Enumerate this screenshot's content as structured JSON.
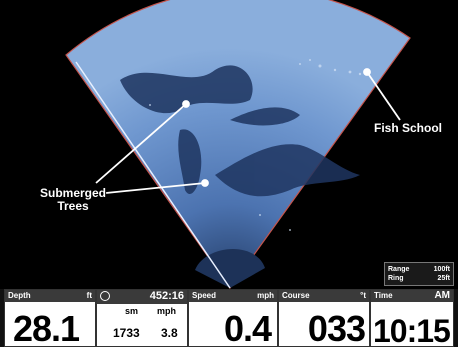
{
  "colors": {
    "sonar_light": "#a9c4e8",
    "sonar_mid": "#5d86c3",
    "sonar_dark": "#233c66",
    "edge_red": "#c4544c"
  },
  "annotations": {
    "fish_school": "Fish School",
    "submerged_line1": "Submerged",
    "submerged_line2": "Trees"
  },
  "range_box": {
    "range_label": "Range",
    "range_value": "100ft",
    "ring_label": "Ring",
    "ring_value": "25ft"
  },
  "panel": {
    "depth": {
      "label": "Depth",
      "unit": "ft",
      "value": "28.1"
    },
    "timer": {
      "icon": "stopwatch-icon",
      "value": "452:16",
      "sm_label": "sm",
      "sm_value": "1733",
      "mph_label": "mph",
      "mph_value": "3.8"
    },
    "speed": {
      "label": "Speed",
      "unit": "mph",
      "value": "0.4"
    },
    "course": {
      "label": "Course",
      "unit": "°t",
      "value": "033"
    },
    "time": {
      "label": "Time",
      "ampm": "AM",
      "value": "10:15"
    }
  }
}
